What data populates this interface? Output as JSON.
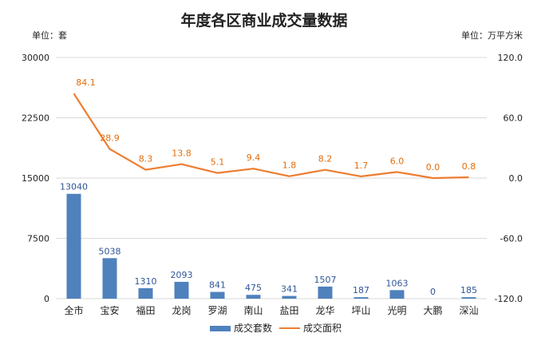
{
  "chart_data": {
    "type": "bar+line",
    "title": "年度各区商业成交量数据",
    "left_unit": "单位：套",
    "right_unit": "单位：万平方米",
    "categories": [
      "全市",
      "宝安",
      "福田",
      "龙岗",
      "罗湖",
      "南山",
      "盐田",
      "龙华",
      "坪山",
      "光明",
      "大鹏",
      "深汕"
    ],
    "series": [
      {
        "name": "成交套数",
        "type": "bar",
        "axis": "left",
        "color": "#4f81bd",
        "values": [
          13040,
          5038,
          1310,
          2093,
          841,
          475,
          341,
          1507,
          187,
          1063,
          0,
          185
        ],
        "labels": [
          "13040",
          "5038",
          "1310",
          "2093",
          "841",
          "475",
          "341",
          "1507",
          "187",
          "1063",
          "0",
          "185"
        ]
      },
      {
        "name": "成交面积",
        "type": "line",
        "axis": "right",
        "color": "#ed7d31",
        "values": [
          84.1,
          28.9,
          8.3,
          13.8,
          5.1,
          9.4,
          1.8,
          8.2,
          1.7,
          6.0,
          0.0,
          0.8
        ],
        "labels": [
          "84.1",
          "28.9",
          "8.3",
          "13.8",
          "5.1",
          "9.4",
          "1.8",
          "8.2",
          "1.7",
          "6.0",
          "0.0",
          "0.8"
        ]
      }
    ],
    "left_axis": {
      "min": 0,
      "max": 30000,
      "ticks": [
        0,
        7500,
        15000,
        22500,
        30000
      ],
      "tick_labels": [
        "0",
        "7500",
        "15000",
        "22500",
        "30000"
      ]
    },
    "right_axis": {
      "min": -120,
      "max": 120,
      "ticks": [
        -120,
        -60,
        0,
        60,
        120
      ],
      "tick_labels": [
        "-120.0",
        "-60.0",
        "0.0",
        "60.0",
        "120.0"
      ]
    },
    "grid": true,
    "legend": "bottom"
  }
}
